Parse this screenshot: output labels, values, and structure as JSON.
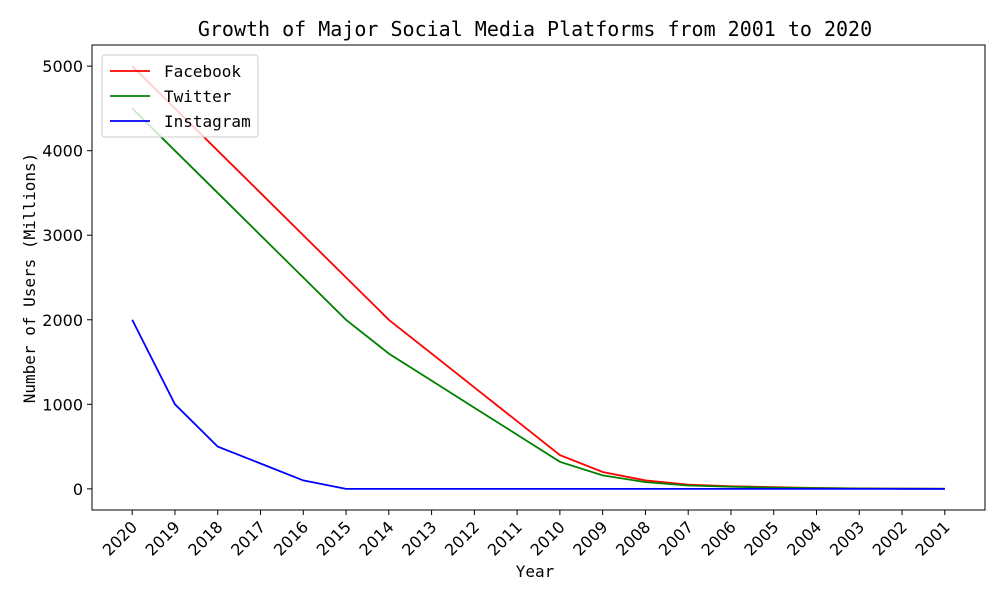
{
  "chart_data": {
    "type": "line",
    "title": "Growth of Major Social Media Platforms from 2001 to 2020",
    "xlabel": "Year",
    "ylabel": "Number of Users (Millions)",
    "categories": [
      "2020",
      "2019",
      "2018",
      "2017",
      "2016",
      "2015",
      "2014",
      "2013",
      "2012",
      "2011",
      "2010",
      "2009",
      "2008",
      "2007",
      "2006",
      "2005",
      "2004",
      "2003",
      "2002",
      "2001"
    ],
    "ylim": [
      -250,
      5250
    ],
    "yticks": [
      0,
      1000,
      2000,
      3000,
      4000,
      5000
    ],
    "grid": false,
    "legend_position": "upper-left",
    "series": [
      {
        "name": "Facebook",
        "color": "#ff0000",
        "values": [
          5000,
          4500,
          4000,
          3500,
          3000,
          2500,
          2000,
          1600,
          1200,
          800,
          400,
          200,
          100,
          50,
          30,
          20,
          10,
          5,
          2,
          1
        ]
      },
      {
        "name": "Twitter",
        "color": "#008000",
        "values": [
          4500,
          4000,
          3500,
          3000,
          2500,
          2000,
          1600,
          1280,
          960,
          640,
          320,
          160,
          80,
          40,
          25,
          15,
          8,
          4,
          2,
          1
        ]
      },
      {
        "name": "Instagram",
        "color": "#0000ff",
        "values": [
          2000,
          1000,
          500,
          300,
          100,
          0,
          0,
          0,
          0,
          0,
          0,
          0,
          0,
          0,
          0,
          0,
          0,
          0,
          0,
          0
        ]
      }
    ]
  }
}
